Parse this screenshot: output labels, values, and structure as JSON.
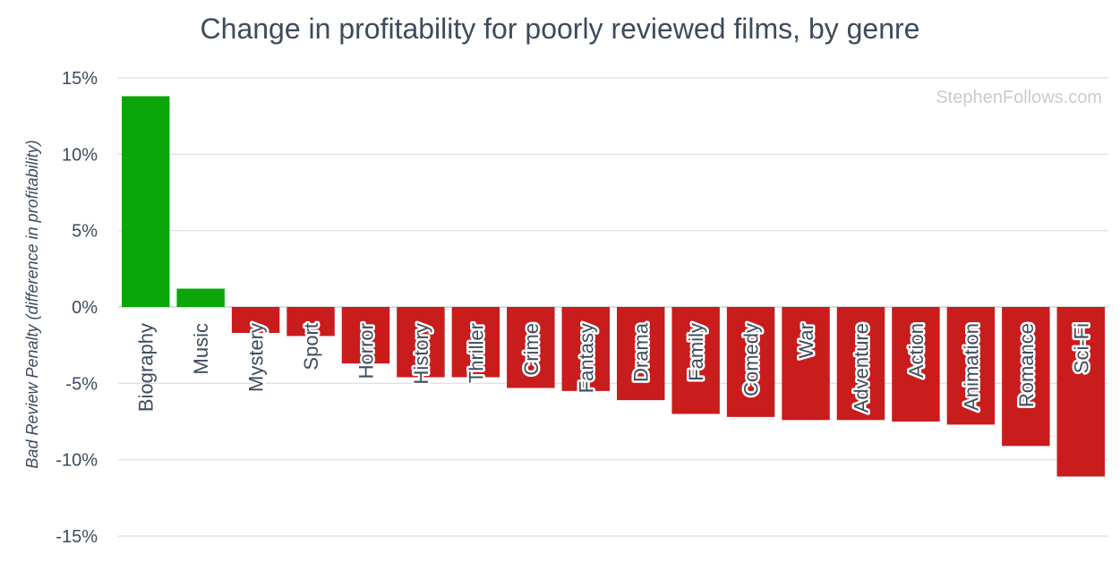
{
  "chart_data": {
    "type": "bar",
    "title": "Change in profitability for poorly reviewed films, by genre",
    "ylabel": "Bad Review Penalty (difference in profitability)",
    "xlabel": "",
    "watermark": "StephenFollows.com",
    "categories": [
      "Biography",
      "Music",
      "Mystery",
      "Sport",
      "Horror",
      "History",
      "Thriller",
      "Crime",
      "Fantasy",
      "Drama",
      "Family",
      "Comedy",
      "War",
      "Adventure",
      "Action",
      "Animation",
      "Romance",
      "Sci-Fi"
    ],
    "values": [
      13.8,
      1.2,
      -1.7,
      -1.9,
      -3.7,
      -4.6,
      -4.6,
      -5.3,
      -5.5,
      -6.1,
      -7.0,
      -7.2,
      -7.4,
      -7.4,
      -7.5,
      -7.7,
      -9.1,
      -11.1
    ],
    "ylim": [
      -15,
      15
    ],
    "yticks": [
      15,
      10,
      5,
      0,
      -5,
      -10,
      -15
    ],
    "ytick_labels": [
      "15%",
      "10%",
      "5%",
      "0%",
      "-5%",
      "-10%",
      "-15%"
    ],
    "grid": true,
    "legend": "none",
    "colors": {
      "positive": "#0aa60a",
      "negative": "#c91c1c",
      "grid": "#d9dcdf",
      "text": "#3d4b5c",
      "watermark": "#c7cbd0"
    }
  }
}
